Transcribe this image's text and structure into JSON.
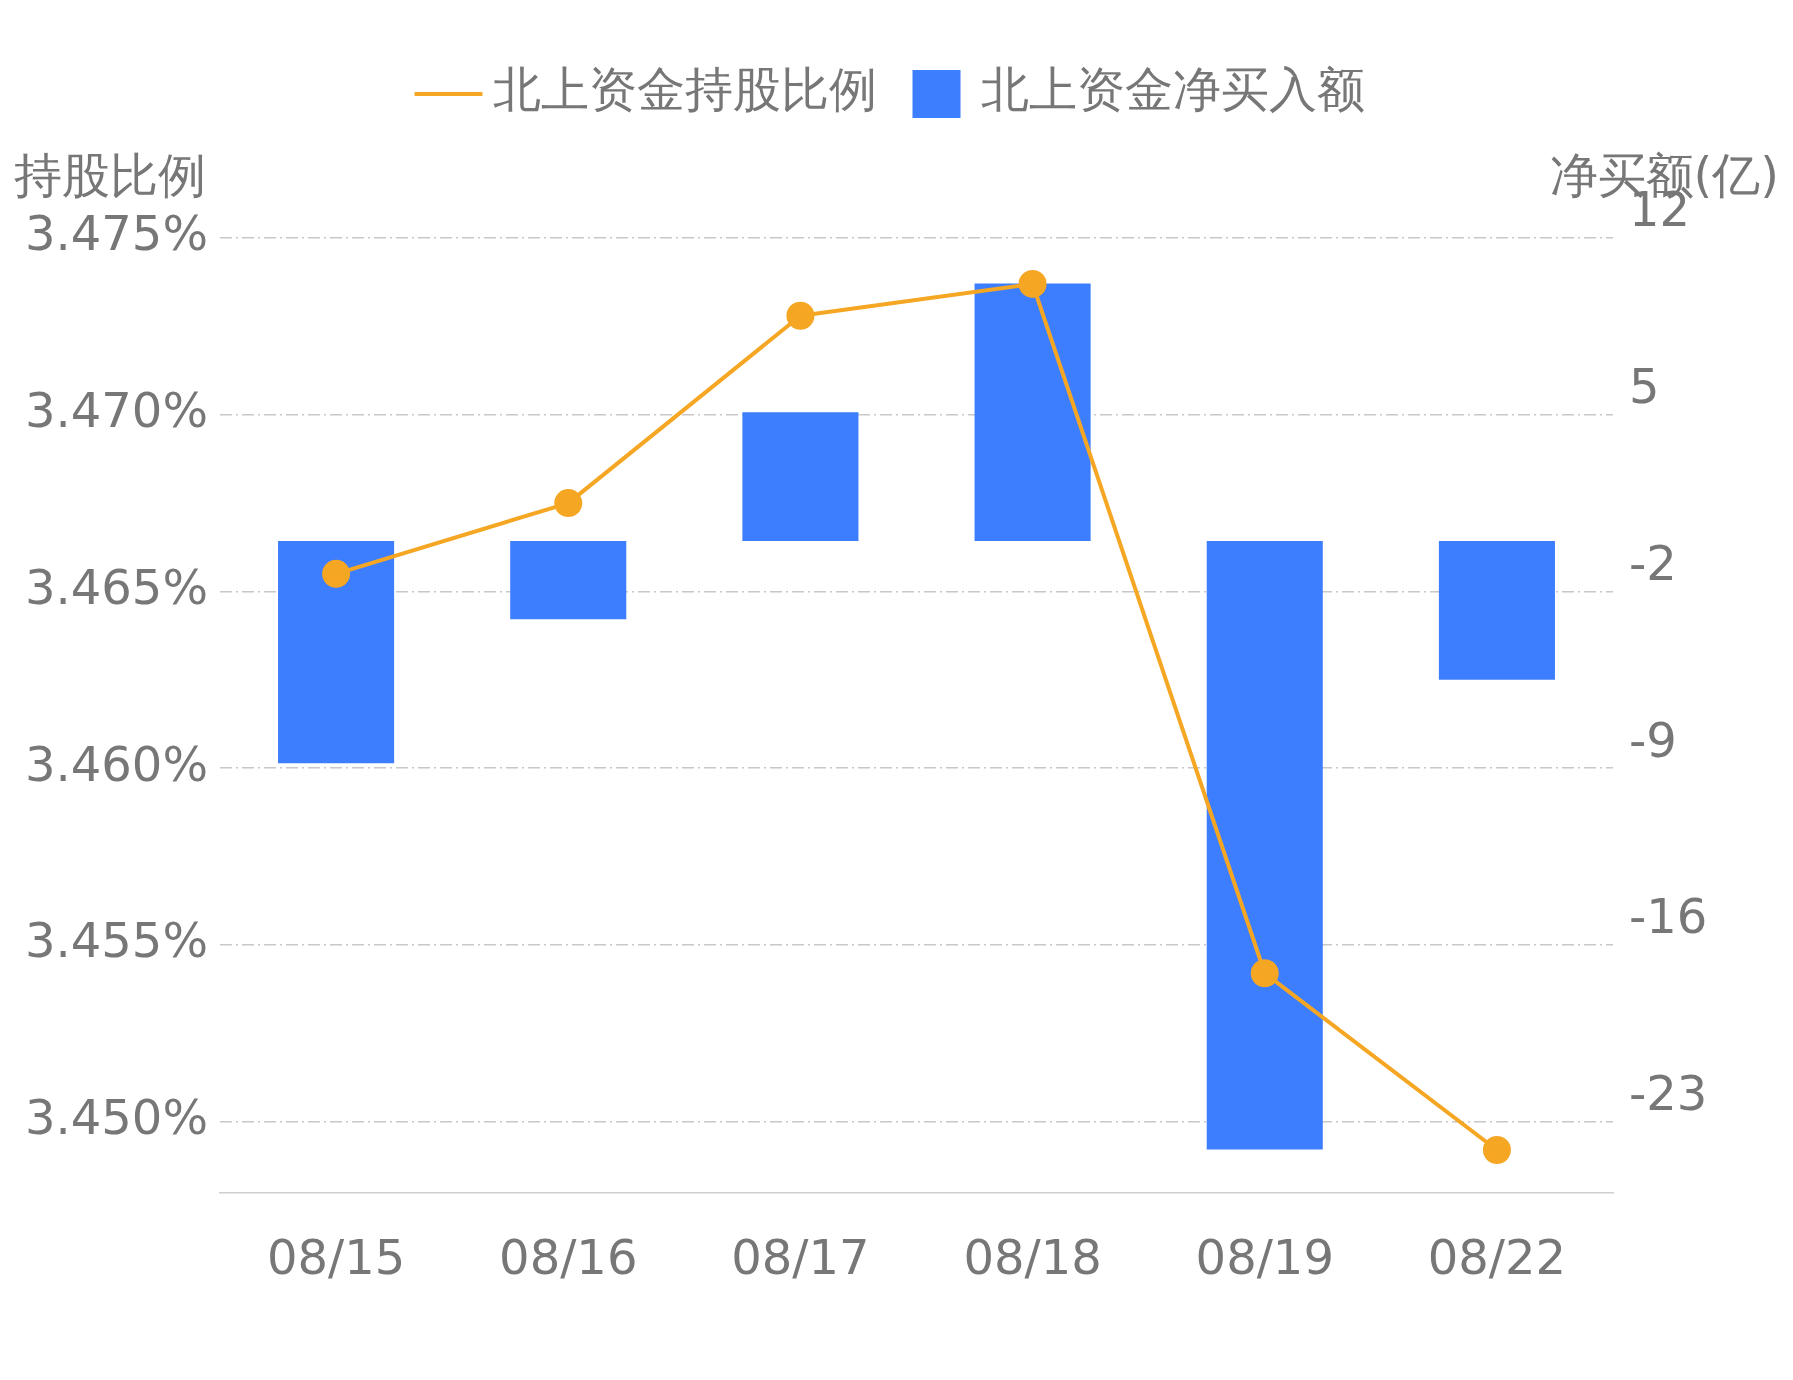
{
  "chart_data": {
    "type": "bar",
    "categories": [
      "08/15",
      "08/16",
      "08/17",
      "08/18",
      "08/19",
      "08/22"
    ],
    "series": [
      {
        "name": "北上资金持股比例",
        "type": "line",
        "color": "#f5a623",
        "values": [
          3.4655,
          3.4675,
          3.4728,
          3.4737,
          3.4542,
          3.4492
        ]
      },
      {
        "name": "北上资金净买入额",
        "type": "bar",
        "axis": "y2",
        "color": "#3d7efe",
        "values": [
          -8.8,
          -3.1,
          5.1,
          10.2,
          -24.1,
          -5.5
        ]
      }
    ],
    "ylabel": "持股比例",
    "y2label": "净买额(亿)",
    "ylim": [
      3.448,
      3.475
    ],
    "yticks": [
      {
        "value": 3.45,
        "label": "3.450%"
      },
      {
        "value": 3.455,
        "label": "3.455%"
      },
      {
        "value": 3.46,
        "label": "3.460%"
      },
      {
        "value": 3.465,
        "label": "3.465%"
      },
      {
        "value": 3.47,
        "label": "3.470%"
      },
      {
        "value": 3.475,
        "label": "3.475%"
      }
    ],
    "y2lim": [
      -25.8,
      12
    ],
    "y2ticks": [
      -23,
      -16,
      -9,
      -2,
      5,
      12
    ],
    "grid": "y",
    "legend": "top",
    "marker": "circle",
    "line_style": "solid"
  }
}
